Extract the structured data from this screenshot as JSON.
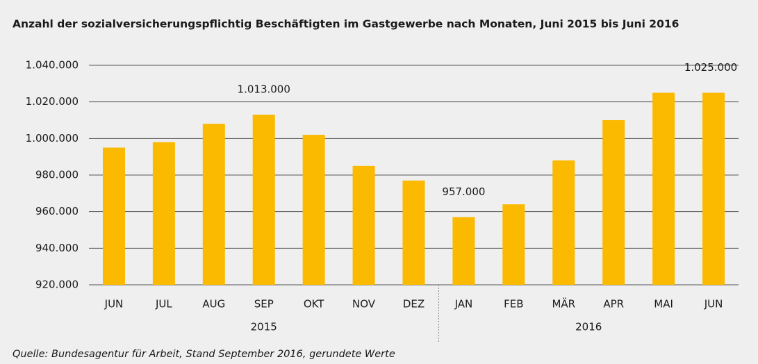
{
  "chart_data": {
    "type": "bar",
    "title": "Anzahl der sozialversicherungspflichtig Beschäftigten im Gastgewerbe nach Monaten, Juni 2015 bis Juni 2016",
    "categories": [
      "JUN",
      "JUL",
      "AUG",
      "SEP",
      "OKT",
      "NOV",
      "DEZ",
      "JAN",
      "FEB",
      "MÄR",
      "APR",
      "MAI",
      "JUN"
    ],
    "groups": [
      {
        "label": "2015",
        "count": 7
      },
      {
        "label": "2016",
        "count": 6
      }
    ],
    "values": [
      995000,
      998000,
      1008000,
      1013000,
      1002000,
      985000,
      977000,
      957000,
      964000,
      988000,
      1010000,
      1025000,
      1025000
    ],
    "value_labels": [
      null,
      null,
      null,
      "1.013.000",
      null,
      null,
      null,
      "957.000",
      null,
      null,
      null,
      null,
      "1.025.000"
    ],
    "color": "#fbb900",
    "ylim": [
      920000,
      1040000
    ],
    "yticks": [
      {
        "value": 920000,
        "label": "920.000"
      },
      {
        "value": 940000,
        "label": "940.000"
      },
      {
        "value": 960000,
        "label": "960.000"
      },
      {
        "value": 980000,
        "label": "980.000"
      },
      {
        "value": 1000000,
        "label": "1.000.000"
      },
      {
        "value": 1020000,
        "label": "1.020.000"
      },
      {
        "value": 1040000,
        "label": "1.040.000"
      }
    ],
    "grid": true,
    "source": "Quelle: Bundesagentur für Arbeit, Stand September 2016, gerundete Werte"
  }
}
